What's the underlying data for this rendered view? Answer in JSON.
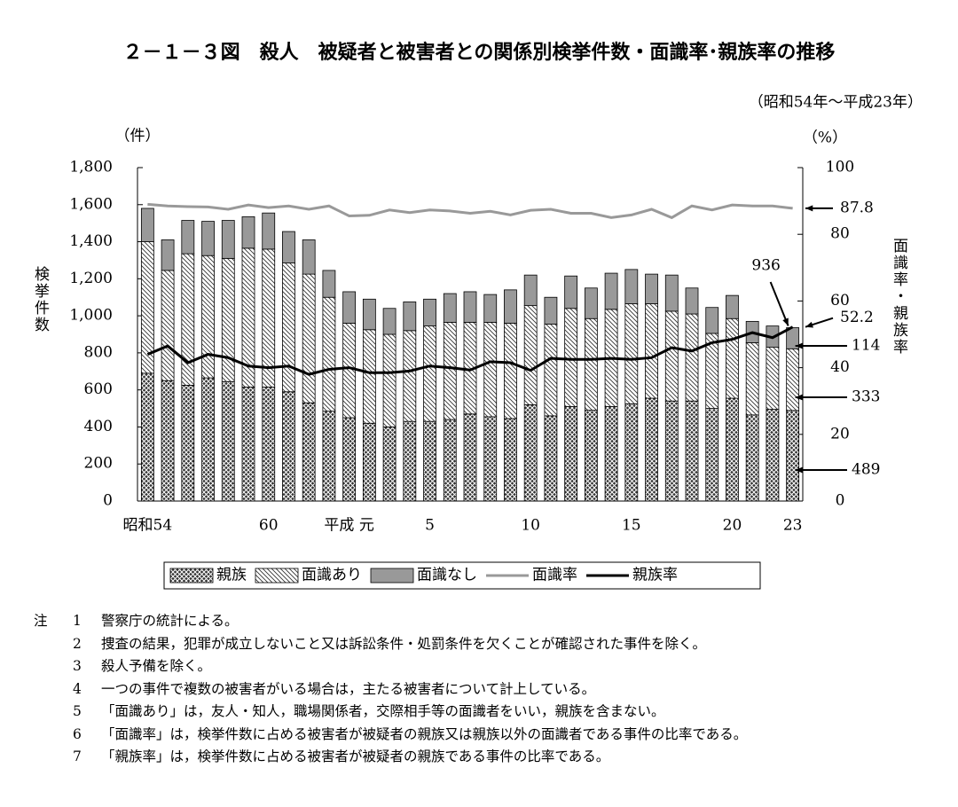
{
  "chart_data": {
    "type": "bar_line",
    "title": "２－１－３図　殺人　被疑者と被害者との関係別検挙件数・面識率･親族率の推移",
    "subtitle": "（昭和54年～平成23年）",
    "y_unit": "（件）",
    "y_label": "検挙件数",
    "y2_unit": "（%）",
    "y2_label": "面識率・親族率",
    "categories": [
      "昭和54",
      null,
      null,
      null,
      null,
      null,
      "60",
      null,
      null,
      null,
      "平成 元",
      null,
      null,
      null,
      "5",
      null,
      null,
      null,
      null,
      "10",
      null,
      null,
      null,
      null,
      "15",
      null,
      null,
      null,
      null,
      "20",
      null,
      null,
      "23"
    ],
    "series": [
      {
        "name": "親族",
        "color": "#333333",
        "pattern": "crosshatch",
        "values": [
          690,
          650,
          625,
          665,
          645,
          615,
          615,
          590,
          530,
          485,
          450,
          420,
          400,
          430,
          430,
          440,
          470,
          455,
          445,
          520,
          460,
          510,
          490,
          510,
          525,
          555,
          540,
          540,
          500,
          555,
          465,
          495,
          489
        ]
      },
      {
        "name": "面識あり",
        "color": "#ffffff",
        "pattern": "hatch",
        "values": [
          710,
          595,
          710,
          660,
          665,
          750,
          745,
          695,
          695,
          615,
          510,
          505,
          500,
          490,
          515,
          525,
          495,
          510,
          515,
          535,
          495,
          530,
          495,
          525,
          540,
          510,
          485,
          470,
          405,
          430,
          390,
          335,
          333
        ]
      },
      {
        "name": "面識なし",
        "color": "#999999",
        "pattern": "solid",
        "values": [
          180,
          165,
          180,
          185,
          205,
          170,
          195,
          170,
          185,
          145,
          170,
          165,
          140,
          155,
          145,
          155,
          165,
          150,
          180,
          165,
          145,
          175,
          165,
          195,
          185,
          160,
          195,
          140,
          140,
          125,
          115,
          115,
          114
        ]
      },
      {
        "name": "面識率",
        "color": "#999999",
        "axis": "y2",
        "line": true,
        "values": [
          89,
          88.5,
          88.3,
          88.2,
          87.5,
          88.8,
          88,
          88.5,
          87.5,
          88.5,
          85.5,
          85.7,
          87.3,
          86.5,
          87.3,
          87,
          86.3,
          86.9,
          85.8,
          87.2,
          87.5,
          86.3,
          86.3,
          85,
          85.8,
          87.5,
          85,
          88.5,
          87.3,
          88.8,
          88.5,
          88.5,
          87.8
        ]
      },
      {
        "name": "親族率",
        "color": "#000000",
        "axis": "y2",
        "line": true,
        "values": [
          44,
          46.5,
          41.5,
          44,
          43,
          40.5,
          40,
          40.5,
          38,
          39.5,
          40,
          38.5,
          38.5,
          39,
          40.5,
          40,
          39.3,
          41.8,
          41.5,
          39.2,
          42.8,
          42.5,
          42.5,
          42.8,
          42.5,
          43,
          46,
          45,
          47.5,
          48.5,
          50.5,
          49,
          52.2
        ]
      }
    ],
    "annotations": [
      "936"
    ],
    "ylim": [
      0,
      1800
    ],
    "yticks": [
      0,
      200,
      400,
      600,
      800,
      {
        "value": 1000,
        "label": "1,000"
      },
      {
        "value": 1200,
        "label": "1,200"
      },
      {
        "value": 1400,
        "label": "1,400"
      },
      {
        "value": 1600,
        "label": "1,600"
      },
      {
        "value": 1800,
        "label": "1,800"
      }
    ],
    "y2lim": [
      0,
      100
    ],
    "y2ticks": [
      0,
      20,
      40,
      60,
      80,
      100
    ]
  },
  "notes": {
    "head": "注",
    "items": [
      {
        "num": "1",
        "text": "警察庁の統計による。"
      },
      {
        "num": "2",
        "text": "捜査の結果，犯罪が成立しないこと又は訴訟条件・処罰条件を欠くことが確認された事件を除く。"
      },
      {
        "num": "3",
        "text": "殺人予備を除く。"
      },
      {
        "num": "4",
        "text": "一つの事件で複数の被害者がいる場合は，主たる被害者について計上している。"
      },
      {
        "num": "5",
        "text": "「面識あり」は，友人・知人，職場関係者，交際相手等の面識者をいい，親族を含まない。"
      },
      {
        "num": "6",
        "text": "「面識率」は，検挙件数に占める被害者が被疑者の親族又は親族以外の面識者である事件の比率である。"
      },
      {
        "num": "7",
        "text": "「親族率」は，検挙件数に占める被害者が被疑者の親族である事件の比率である。"
      }
    ]
  }
}
